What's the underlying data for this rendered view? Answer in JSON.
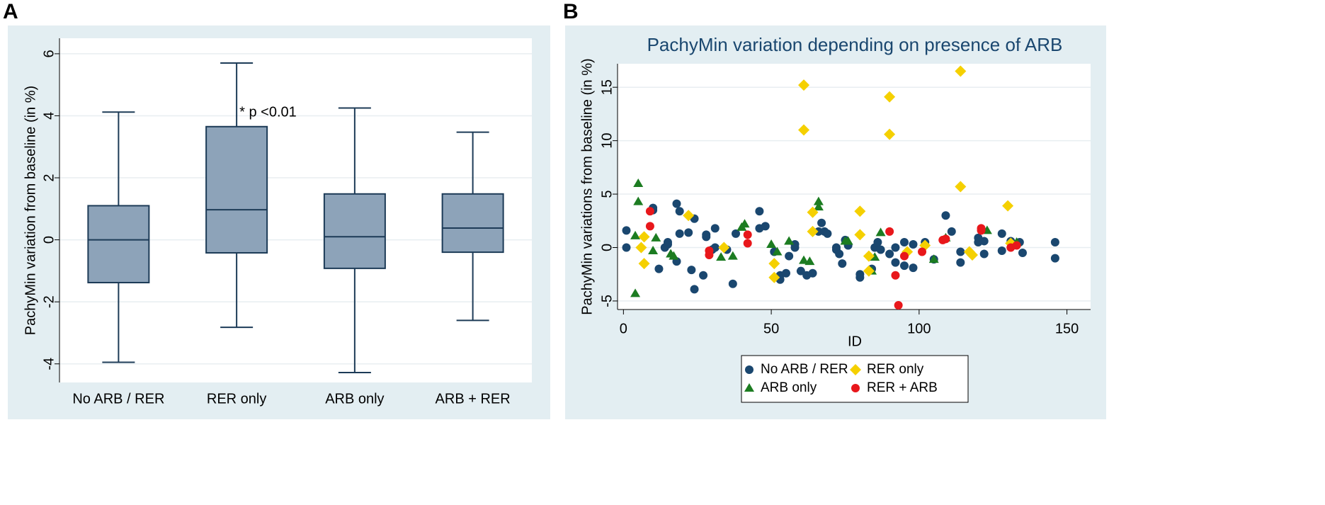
{
  "panel_labels": {
    "a": "A",
    "b": "B"
  },
  "colors": {
    "panel_bg": "#e3eef2",
    "box_fill": "#8da3b9",
    "box_stroke": "#1d3b57",
    "grid": "#e8eef1",
    "series": [
      "#1a476f",
      "#1c7c21",
      "#f5d000",
      "#e8171b"
    ]
  },
  "chart_data": [
    {
      "type": "box",
      "title": "",
      "ylabel": "PachyMin variation from baseline (in %)",
      "xlabel": "",
      "ylim": [
        -4.6,
        6.5
      ],
      "yticks": [
        -4,
        -2,
        0,
        2,
        4,
        6
      ],
      "ytick_labels": [
        "-4",
        "-2",
        "0",
        "2",
        "4",
        "6"
      ],
      "categories": [
        "No ARB / RER",
        "RER only",
        "ARB only",
        "ARB + RER"
      ],
      "boxes": [
        {
          "whisker_low": -3.95,
          "q1": -1.38,
          "median": 0.0,
          "q3": 1.1,
          "whisker_high": 4.12
        },
        {
          "whisker_low": -2.82,
          "q1": -0.42,
          "median": 0.97,
          "q3": 3.65,
          "whisker_high": 5.7
        },
        {
          "whisker_low": -4.28,
          "q1": -0.92,
          "median": 0.1,
          "q3": 1.48,
          "whisker_high": 4.25
        },
        {
          "whisker_low": -2.6,
          "q1": -0.4,
          "median": 0.38,
          "q3": 1.48,
          "whisker_high": 3.47
        }
      ],
      "annotation": {
        "text": "* p <0.01",
        "category": "RER only",
        "y": 4.1
      }
    },
    {
      "type": "scatter",
      "title": "PachyMin variation depending on presence of ARB",
      "xlabel": "ID",
      "ylabel": "PachyMin variations from baseline (in %)",
      "xlim": [
        -2,
        158
      ],
      "ylim": [
        -5.8,
        17.2
      ],
      "xticks": [
        0,
        50,
        100,
        150
      ],
      "xtick_labels": [
        "0",
        "50",
        "100",
        "150"
      ],
      "yticks": [
        -5,
        0,
        5,
        10,
        15
      ],
      "ytick_labels": [
        "-5",
        "0",
        "5",
        "10",
        "15"
      ],
      "legend_position": "bottom",
      "series": [
        {
          "name": "No ARB / RER",
          "marker": "circle",
          "points": [
            [
              1,
              1.6
            ],
            [
              1,
              0
            ],
            [
              10,
              3.5
            ],
            [
              10,
              3.7
            ],
            [
              12,
              -2
            ],
            [
              14,
              0
            ],
            [
              15,
              0.3
            ],
            [
              15,
              0.5
            ],
            [
              18,
              -1.3
            ],
            [
              18,
              4.1
            ],
            [
              19,
              1.3
            ],
            [
              19,
              3.4
            ],
            [
              22,
              1.4
            ],
            [
              23,
              -2.1
            ],
            [
              24,
              2.7
            ],
            [
              24,
              -3.9
            ],
            [
              27,
              -2.6
            ],
            [
              28,
              1
            ],
            [
              28,
              1.2
            ],
            [
              30,
              -0.2
            ],
            [
              31,
              0
            ],
            [
              31,
              1.8
            ],
            [
              35,
              -0.2
            ],
            [
              37,
              -3.4
            ],
            [
              38,
              1.3
            ],
            [
              46,
              3.4
            ],
            [
              46,
              1.8
            ],
            [
              48,
              2
            ],
            [
              51,
              -0.4
            ],
            [
              53,
              -2.6
            ],
            [
              53,
              -3
            ],
            [
              55,
              -2.4
            ],
            [
              56,
              -0.8
            ],
            [
              58,
              0
            ],
            [
              58,
              0.3
            ],
            [
              60,
              -2.2
            ],
            [
              62,
              -2.6
            ],
            [
              64,
              -2.4
            ],
            [
              66,
              1.5
            ],
            [
              67,
              2.3
            ],
            [
              68,
              1.5
            ],
            [
              69,
              1.3
            ],
            [
              72,
              0
            ],
            [
              72,
              -0.2
            ],
            [
              73,
              -0.6
            ],
            [
              74,
              -1.5
            ],
            [
              75,
              0.7
            ],
            [
              76,
              0.2
            ],
            [
              80,
              -2.5
            ],
            [
              80,
              -2.8
            ],
            [
              84,
              -2
            ],
            [
              85,
              0
            ],
            [
              86,
              0.5
            ],
            [
              87,
              -0.2
            ],
            [
              90,
              -0.6
            ],
            [
              92,
              0
            ],
            [
              92,
              -1.4
            ],
            [
              95,
              0.5
            ],
            [
              95,
              -1.7
            ],
            [
              98,
              0.3
            ],
            [
              98,
              -1.9
            ],
            [
              102,
              0.5
            ],
            [
              105,
              -1.1
            ],
            [
              109,
              3
            ],
            [
              111,
              1.5
            ],
            [
              114,
              -0.4
            ],
            [
              114,
              -1.4
            ],
            [
              120,
              0.5
            ],
            [
              120,
              0.9
            ],
            [
              122,
              -0.6
            ],
            [
              122,
              0.6
            ],
            [
              128,
              -0.3
            ],
            [
              128,
              1.3
            ],
            [
              131,
              0.6
            ],
            [
              132,
              0.3
            ],
            [
              134,
              0.5
            ],
            [
              135,
              -0.5
            ],
            [
              146,
              0.5
            ],
            [
              146,
              -1
            ]
          ]
        },
        {
          "name": "ARB only",
          "marker": "triangle",
          "points": [
            [
              4,
              1.1
            ],
            [
              4,
              -4.3
            ],
            [
              5,
              6
            ],
            [
              5,
              4.3
            ],
            [
              10,
              -0.3
            ],
            [
              11,
              0.9
            ],
            [
              16,
              -0.6
            ],
            [
              17,
              -0.8
            ],
            [
              33,
              -0.9
            ],
            [
              37,
              -0.8
            ],
            [
              40,
              1.9
            ],
            [
              41,
              2.2
            ],
            [
              50,
              0.3
            ],
            [
              52,
              -0.4
            ],
            [
              56,
              0.6
            ],
            [
              61,
              -1.2
            ],
            [
              63,
              -1.3
            ],
            [
              66,
              3.8
            ],
            [
              66,
              4.3
            ],
            [
              75,
              0.6
            ],
            [
              76,
              0.6
            ],
            [
              84,
              -2.2
            ],
            [
              85,
              -0.9
            ],
            [
              87,
              1.4
            ],
            [
              105,
              -1.1
            ],
            [
              109,
              0.9
            ],
            [
              123,
              1.6
            ],
            [
              133,
              0.5
            ]
          ]
        },
        {
          "name": "RER only",
          "marker": "diamond",
          "points": [
            [
              6,
              0
            ],
            [
              7,
              1
            ],
            [
              7,
              -1.5
            ],
            [
              22,
              3
            ],
            [
              34,
              0
            ],
            [
              51,
              -1.5
            ],
            [
              51,
              -2.8
            ],
            [
              61,
              15.2
            ],
            [
              61,
              11
            ],
            [
              64,
              3.3
            ],
            [
              64,
              1.5
            ],
            [
              80,
              3.4
            ],
            [
              80,
              1.2
            ],
            [
              83,
              -0.8
            ],
            [
              83,
              -2.2
            ],
            [
              90,
              14.1
            ],
            [
              90,
              10.6
            ],
            [
              96,
              -0.4
            ],
            [
              102,
              0.2
            ],
            [
              114,
              16.5
            ],
            [
              114,
              5.7
            ],
            [
              117,
              -0.4
            ],
            [
              118,
              -0.7
            ],
            [
              130,
              3.9
            ],
            [
              131,
              0.4
            ]
          ]
        },
        {
          "name": "RER + ARB",
          "marker": "circle",
          "points": [
            [
              9,
              3.4
            ],
            [
              9,
              2
            ],
            [
              29,
              -0.7
            ],
            [
              29,
              -0.3
            ],
            [
              42,
              1.2
            ],
            [
              42,
              0.4
            ],
            [
              90,
              1.5
            ],
            [
              92,
              -2.6
            ],
            [
              93,
              -5.4
            ],
            [
              95,
              -0.8
            ],
            [
              101,
              -0.4
            ],
            [
              108,
              0.7
            ],
            [
              109,
              0.8
            ],
            [
              121,
              1.8
            ],
            [
              121,
              1.6
            ],
            [
              131,
              0
            ],
            [
              133,
              0.2
            ]
          ]
        }
      ]
    }
  ]
}
